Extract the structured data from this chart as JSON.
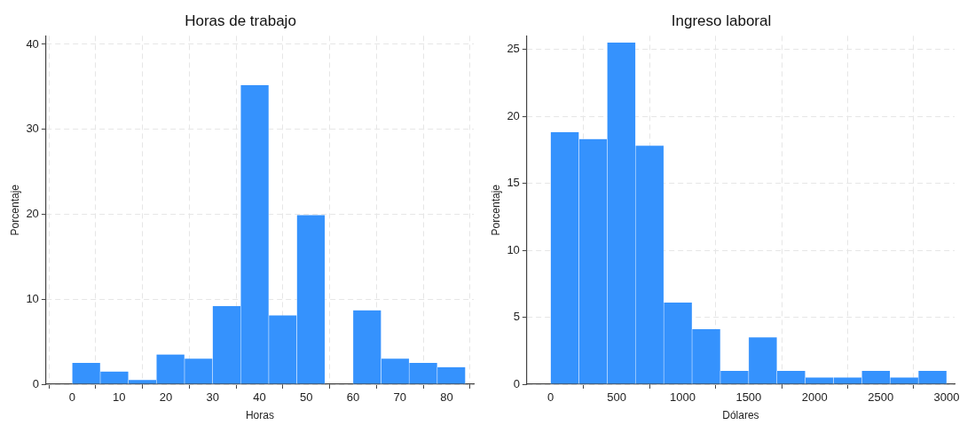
{
  "chart_data": [
    {
      "type": "histogram",
      "title": "Horas de trabajo",
      "xlabel": "Horas",
      "ylabel": "Porcentaje",
      "color": "#3592fd",
      "bins": [
        0,
        6,
        12,
        18,
        24,
        30,
        36,
        42,
        48,
        54,
        60,
        66,
        72,
        78,
        84
      ],
      "values": [
        2.5,
        1.5,
        0.5,
        3.5,
        3.0,
        9.2,
        35.2,
        8.1,
        19.9,
        0,
        8.7,
        3.0,
        2.5,
        2.0
      ],
      "xlim": [
        -5.6,
        85.8
      ],
      "xticks": [
        0,
        10,
        20,
        30,
        40,
        50,
        60,
        70,
        80
      ],
      "ylim": [
        0,
        41
      ],
      "yticks": [
        0,
        10,
        20,
        30,
        40
      ],
      "grid": true
    },
    {
      "type": "histogram",
      "title": "Ingreso laboral",
      "xlabel": "Dólares",
      "ylabel": "Porcentaje",
      "color": "#3592fd",
      "bins": [
        0,
        214.3,
        428.6,
        642.9,
        857.1,
        1071.4,
        1285.7,
        1500,
        1714.3,
        1928.6,
        2142.9,
        2357.1,
        2571.4,
        2785.7,
        3000
      ],
      "values": [
        18.8,
        18.3,
        25.5,
        17.8,
        6.1,
        4.1,
        1.0,
        3.5,
        1.0,
        0.5,
        0.5,
        1.0,
        0.5,
        1.0
      ],
      "xlim": [
        -180,
        3060
      ],
      "xticks": [
        0,
        500,
        1000,
        1500,
        2000,
        2500,
        3000
      ],
      "ylim": [
        0,
        26
      ],
      "yticks": [
        0,
        5,
        10,
        15,
        20,
        25
      ],
      "grid": true
    }
  ]
}
